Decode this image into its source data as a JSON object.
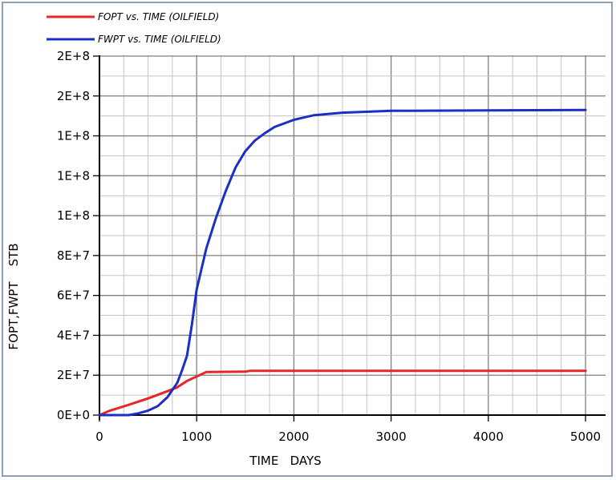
{
  "chart_data": {
    "type": "line",
    "xlabel": "TIME   DAYS",
    "ylabel": "FOPT,FWPT    STB",
    "xlim": [
      0,
      5000
    ],
    "ylim": [
      0,
      200000000
    ],
    "x_ticks": [
      "0",
      "1000",
      "2000",
      "3000",
      "4000",
      "5000"
    ],
    "y_ticks": [
      "0E+0",
      "2E+7",
      "4E+7",
      "6E+7",
      "8E+7",
      "1E+8",
      "1E+8",
      "1E+8",
      "2E+8",
      "2E+8"
    ],
    "grid": true,
    "legend_position": "top-left",
    "series": [
      {
        "name": "FOPT  vs.  TIME (OILFIELD)",
        "color": "#e8262a",
        "points": [
          [
            0,
            0
          ],
          [
            100,
            2300000
          ],
          [
            300,
            5700000
          ],
          [
            500,
            9300000
          ],
          [
            700,
            13300000
          ],
          [
            800,
            15500000
          ],
          [
            900,
            19000000
          ],
          [
            1000,
            21500000
          ],
          [
            1100,
            24000000
          ],
          [
            1500,
            24200000
          ],
          [
            1550,
            24700000
          ],
          [
            5000,
            24700000
          ]
        ]
      },
      {
        "name": "FWPT  vs.  TIME (OILFIELD)",
        "color": "#1c2fc4",
        "points": [
          [
            0,
            0
          ],
          [
            300,
            0
          ],
          [
            400,
            1000000
          ],
          [
            500,
            2500000
          ],
          [
            600,
            5000000
          ],
          [
            700,
            10000000
          ],
          [
            800,
            18000000
          ],
          [
            850,
            25000000
          ],
          [
            900,
            33000000
          ],
          [
            950,
            50000000
          ],
          [
            1000,
            70000000
          ],
          [
            1100,
            93000000
          ],
          [
            1200,
            110000000
          ],
          [
            1300,
            125000000
          ],
          [
            1400,
            138000000
          ],
          [
            1500,
            147000000
          ],
          [
            1600,
            153000000
          ],
          [
            1700,
            157000000
          ],
          [
            1800,
            160500000
          ],
          [
            2000,
            164500000
          ],
          [
            2200,
            167000000
          ],
          [
            2500,
            168500000
          ],
          [
            3000,
            169500000
          ],
          [
            5000,
            170000000
          ]
        ]
      }
    ]
  }
}
